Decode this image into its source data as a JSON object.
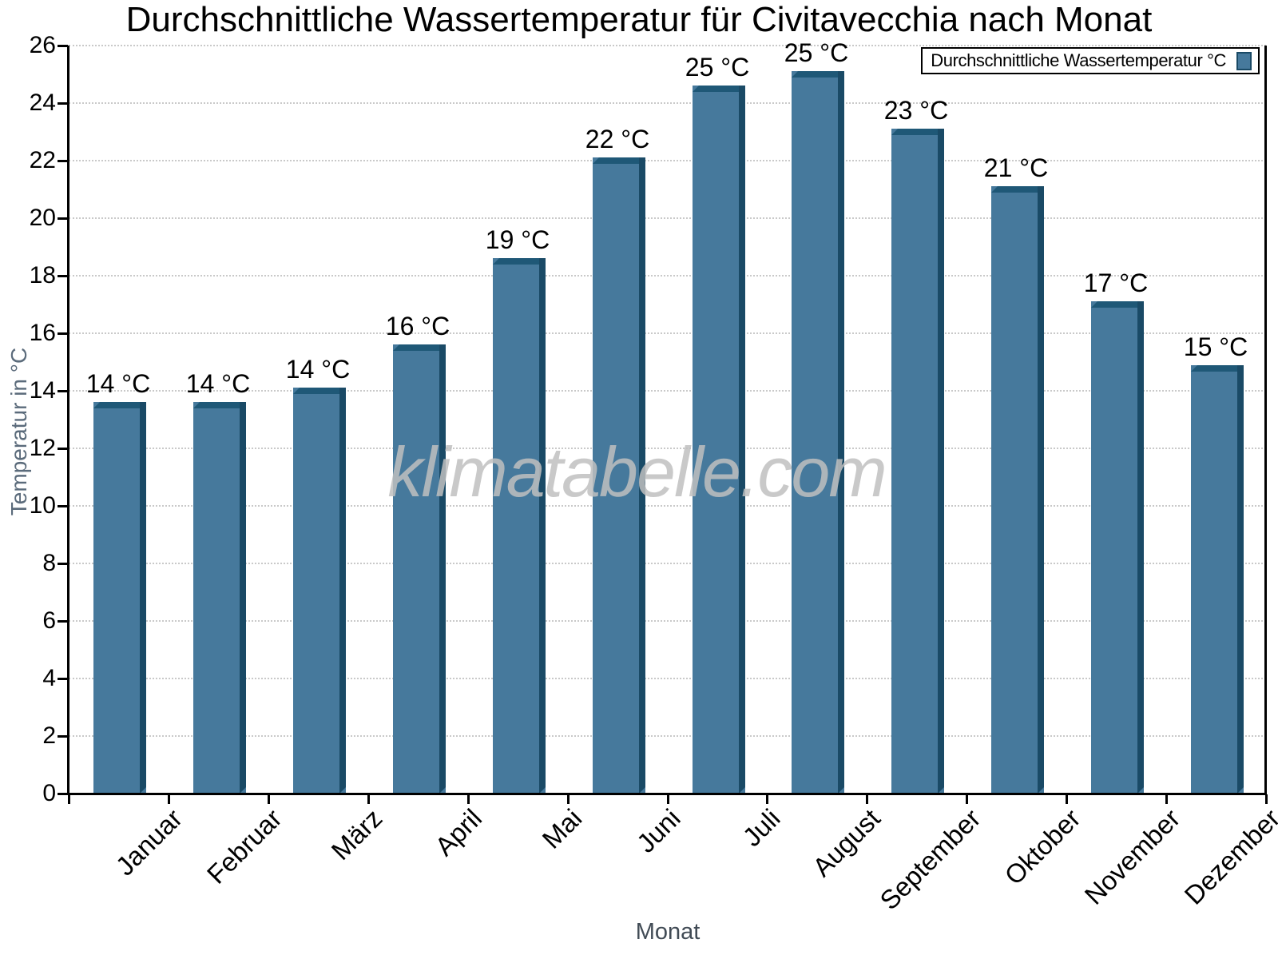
{
  "chart_data": {
    "type": "bar",
    "title": "Durchschnittliche Wassertemperatur für Civitavecchia nach Monat",
    "xlabel": "Monat",
    "ylabel": "Temperatur in °C",
    "legend_label": "Durchschnittliche Wassertemperatur °C",
    "legend_position": "top-right",
    "categories": [
      "Januar",
      "Februar",
      "März",
      "April",
      "Mai",
      "Juni",
      "Juli",
      "August",
      "September",
      "Oktober",
      "November",
      "Dezember"
    ],
    "values": [
      13.6,
      13.6,
      14.1,
      15.6,
      18.6,
      22.1,
      24.6,
      25.1,
      23.1,
      21.1,
      17.1,
      14.9
    ],
    "value_labels": [
      "14 °C",
      "14 °C",
      "14 °C",
      "16 °C",
      "19 °C",
      "22 °C",
      "25 °C",
      "25 °C",
      "23 °C",
      "21 °C",
      "17 °C",
      "15 °C"
    ],
    "ylim": [
      0,
      26
    ],
    "ytick_step": 2,
    "grid": "horizontal-dotted",
    "watermark": "klimatabelle.com",
    "colors": {
      "bar_fill": "#46799C",
      "bar_top_edge": "#1F5877",
      "bar_right_edge": "#1A4A66",
      "gridline": "#C9C9C9",
      "axis": "#000000",
      "y_axis_title": "#5B6B7B",
      "x_axis_title": "#414B55",
      "watermark": "#C0C0C0"
    }
  }
}
